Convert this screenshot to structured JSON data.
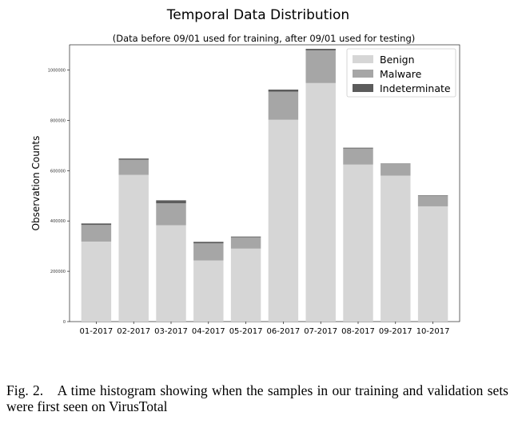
{
  "chart_data": {
    "type": "bar",
    "stacked": true,
    "title": "Temporal Data Distribution",
    "subtitle": "(Data before 09/01 used for training, after 09/01 used for testing)",
    "ylabel": "Observation Counts",
    "xlabel": "",
    "categories": [
      "01-2017",
      "02-2017",
      "03-2017",
      "04-2017",
      "05-2017",
      "06-2017",
      "07-2017",
      "08-2017",
      "09-2017",
      "10-2017"
    ],
    "series": [
      {
        "name": "Benign",
        "color": "#d6d6d6",
        "values": [
          318000,
          583000,
          383000,
          243000,
          290000,
          802000,
          948000,
          624000,
          580000,
          458000
        ]
      },
      {
        "name": "Malware",
        "color": "#a6a6a6",
        "values": [
          66000,
          60000,
          87000,
          68000,
          45000,
          112000,
          130000,
          64000,
          46000,
          42000
        ]
      },
      {
        "name": "Indeterminate",
        "color": "#5c5c5c",
        "values": [
          6000,
          5000,
          12000,
          6000,
          3000,
          8000,
          6000,
          3000,
          2000,
          2000
        ]
      }
    ],
    "ylim": [
      0,
      1100000
    ],
    "yticks": [
      0,
      200000,
      400000,
      600000,
      800000,
      1000000
    ],
    "ytick_labels": [
      "0",
      "200000",
      "400000",
      "600000",
      "800000",
      "1000000"
    ],
    "legend_position": "top-right",
    "grid": false
  },
  "caption": "Fig. 2. A time histogram showing when the samples in our training and validation sets were first seen on VirusTotal"
}
